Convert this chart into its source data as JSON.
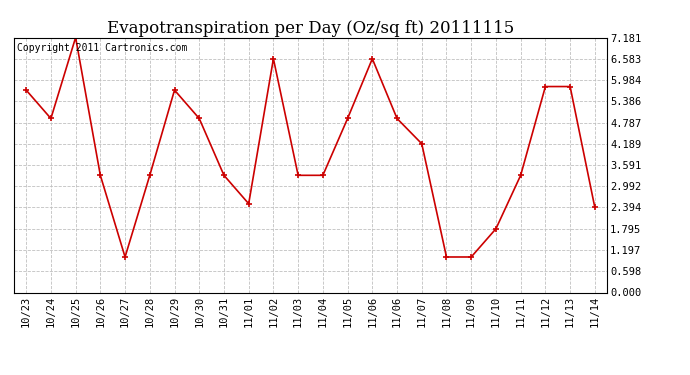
{
  "title": "Evapotranspiration per Day (Oz/sq ft) 20111115",
  "copyright": "Copyright 2011 Cartronics.com",
  "x_labels": [
    "10/23",
    "10/24",
    "10/25",
    "10/26",
    "10/27",
    "10/28",
    "10/29",
    "10/30",
    "10/31",
    "11/01",
    "11/02",
    "11/03",
    "11/04",
    "11/05",
    "11/06",
    "11/06",
    "11/07",
    "11/08",
    "11/09",
    "11/10",
    "11/11",
    "11/12",
    "11/13",
    "11/14"
  ],
  "y_values": [
    5.7,
    4.9,
    7.181,
    3.3,
    1.0,
    3.3,
    5.7,
    4.9,
    3.3,
    2.5,
    6.583,
    3.3,
    3.3,
    4.9,
    6.583,
    4.9,
    4.189,
    1.0,
    1.0,
    1.795,
    3.3,
    5.8,
    5.8,
    2.394
  ],
  "line_color": "#cc0000",
  "marker_color": "#cc0000",
  "background_color": "#ffffff",
  "grid_color": "#c0c0c0",
  "yticks": [
    0.0,
    0.598,
    1.197,
    1.795,
    2.394,
    2.992,
    3.591,
    4.189,
    4.787,
    5.386,
    5.984,
    6.583,
    7.181
  ],
  "ylim": [
    0.0,
    7.181
  ],
  "title_fontsize": 12,
  "copyright_fontsize": 7,
  "tick_fontsize": 7.5
}
